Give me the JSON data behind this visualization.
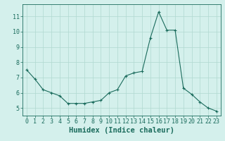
{
  "x": [
    0,
    1,
    2,
    3,
    4,
    5,
    6,
    7,
    8,
    9,
    10,
    11,
    12,
    13,
    14,
    15,
    16,
    17,
    18,
    19,
    20,
    21,
    22,
    23
  ],
  "y": [
    7.5,
    6.9,
    6.2,
    6.0,
    5.8,
    5.3,
    5.3,
    5.3,
    5.4,
    5.5,
    6.0,
    6.2,
    7.1,
    7.3,
    7.4,
    9.6,
    11.3,
    10.1,
    10.1,
    6.3,
    5.9,
    5.4,
    5.0,
    4.8
  ],
  "line_color": "#1a6b5c",
  "marker": "+",
  "bg_color": "#d4f0ec",
  "grid_color": "#b0d8d0",
  "axis_color": "#1a6b5c",
  "xlabel": "Humidex (Indice chaleur)",
  "xlim": [
    -0.5,
    23.5
  ],
  "ylim": [
    4.5,
    11.8
  ],
  "yticks": [
    5,
    6,
    7,
    8,
    9,
    10,
    11
  ],
  "xticks": [
    0,
    1,
    2,
    3,
    4,
    5,
    6,
    7,
    8,
    9,
    10,
    11,
    12,
    13,
    14,
    15,
    16,
    17,
    18,
    19,
    20,
    21,
    22,
    23
  ],
  "tick_fontsize": 6.0,
  "xlabel_fontsize": 7.5
}
